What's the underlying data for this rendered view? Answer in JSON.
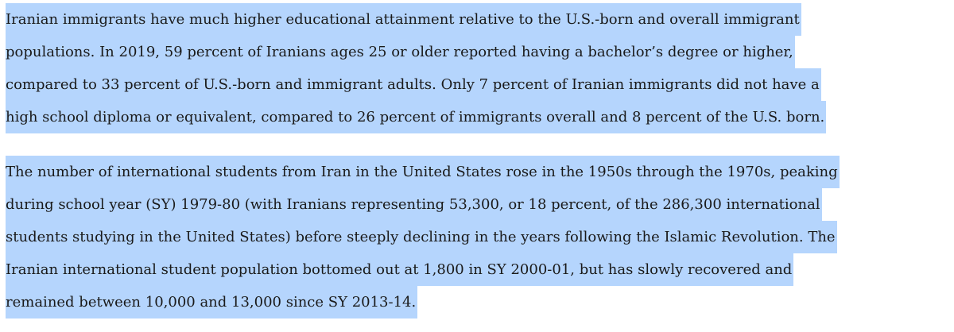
{
  "paragraphs": [
    {
      "lines": [
        "Iranian immigrants have much higher educational attainment relative to the U.S.-born and overall immigrant",
        "populations. In 2019, 59 percent of Iranians ages 25 or older reported having a bachelor’s degree or higher,",
        "compared to 33 percent of U.S.-born and immigrant adults. Only 7 percent of Iranian immigrants did not have a",
        "high school diploma or equivalent, compared to 26 percent of immigrants overall and 8 percent of the U.S. born."
      ]
    },
    {
      "lines": [
        "The number of international students from Iran in the United States rose in the 1950s through the 1970s, peaking",
        "during school year (SY) 1979-80 (with Iranians representing 53,300, or 18 percent, of the 286,300 international",
        "students studying in the United States) before steeply declining in the years following the Islamic Revolution. The",
        "Iranian international student population bottomed out at 1,800 in SY 2000-01, but has slowly recovered and",
        "remained between 10,000 and 13,000 since SY 2013-14."
      ]
    }
  ]
}
